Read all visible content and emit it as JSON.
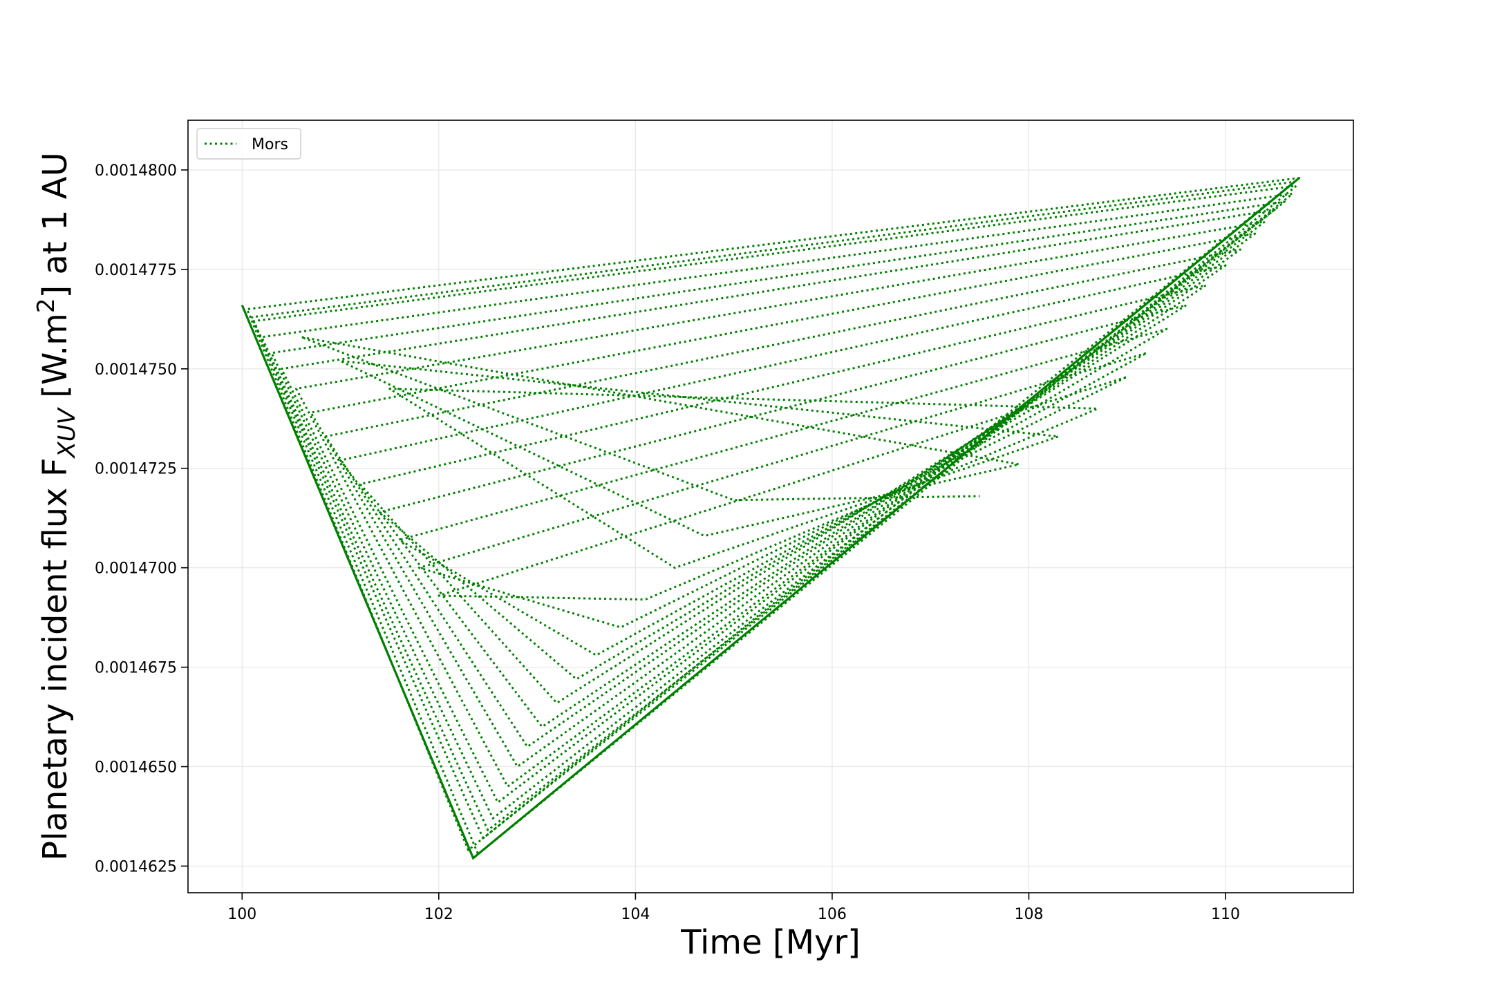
{
  "chart_data": {
    "type": "line",
    "xlabel": "Time [Myr]",
    "ylabel": {
      "prefix": "Planetary incident flux F",
      "subscript": "XUV",
      "unit_open": " [W.m",
      "superscript": "2",
      "suffix": "] at 1 AU"
    },
    "xlim": [
      99.45,
      111.3
    ],
    "ylim": [
      0.00146183,
      0.00148125
    ],
    "x_ticks": [
      100,
      102,
      104,
      106,
      108,
      110
    ],
    "x_tick_labels": [
      "100",
      "102",
      "104",
      "106",
      "108",
      "110"
    ],
    "y_ticks": [
      0.0014625,
      0.001465,
      0.0014675,
      0.00147,
      0.0014725,
      0.001475,
      0.0014775,
      0.00148
    ],
    "y_tick_labels": [
      "0.0014625",
      "0.0014650",
      "0.0014675",
      "0.0014700",
      "0.0014725",
      "0.0014750",
      "0.0014775",
      "0.0014800"
    ],
    "grid": true,
    "legend_position": "upper-left",
    "series": [
      {
        "name": "Mors",
        "color": "#008000",
        "line_style": "dotted",
        "envelope_vertices": {
          "x": [
            100.0,
            102.35,
            110.75
          ],
          "y": [
            0.0014766,
            0.0014627,
            0.0014798
          ]
        },
        "x": [
          100.0,
          102.35,
          110.75,
          100.05,
          102.3,
          110.7,
          100.1,
          102.4,
          110.72,
          100.12,
          102.45,
          110.68,
          100.2,
          102.5,
          110.6,
          100.3,
          102.55,
          110.5,
          100.4,
          102.6,
          110.4,
          100.55,
          102.7,
          110.3,
          100.7,
          102.8,
          110.15,
          100.85,
          102.9,
          110.0,
          101.0,
          103.05,
          109.8,
          101.2,
          103.2,
          109.6,
          101.4,
          103.4,
          109.4,
          101.6,
          103.6,
          109.2,
          101.8,
          103.85,
          109.0,
          102.0,
          104.1,
          108.7,
          101.5,
          104.4,
          108.3,
          101.0,
          104.7,
          107.9,
          100.6,
          105.0,
          107.5
        ],
        "y": [
          0.0014766,
          0.0014627,
          0.0014798,
          0.0014765,
          0.0014629,
          0.0014797,
          0.0014763,
          0.0014628,
          0.0014796,
          0.0014762,
          0.0014632,
          0.0014794,
          0.0014758,
          0.0014634,
          0.0014792,
          0.0014754,
          0.0014637,
          0.001479,
          0.001475,
          0.0014641,
          0.0014787,
          0.0014745,
          0.0014645,
          0.0014784,
          0.0014739,
          0.001465,
          0.001478,
          0.0014733,
          0.0014655,
          0.0014776,
          0.0014727,
          0.001466,
          0.0014771,
          0.0014721,
          0.0014666,
          0.0014766,
          0.0014714,
          0.0014672,
          0.001476,
          0.0014707,
          0.0014678,
          0.0014754,
          0.00147,
          0.0014685,
          0.0014748,
          0.0014693,
          0.0014692,
          0.001474,
          0.0014745,
          0.00147,
          0.0014733,
          0.0014752,
          0.0014708,
          0.0014726,
          0.0014758,
          0.0014717,
          0.0014718
        ]
      }
    ]
  }
}
